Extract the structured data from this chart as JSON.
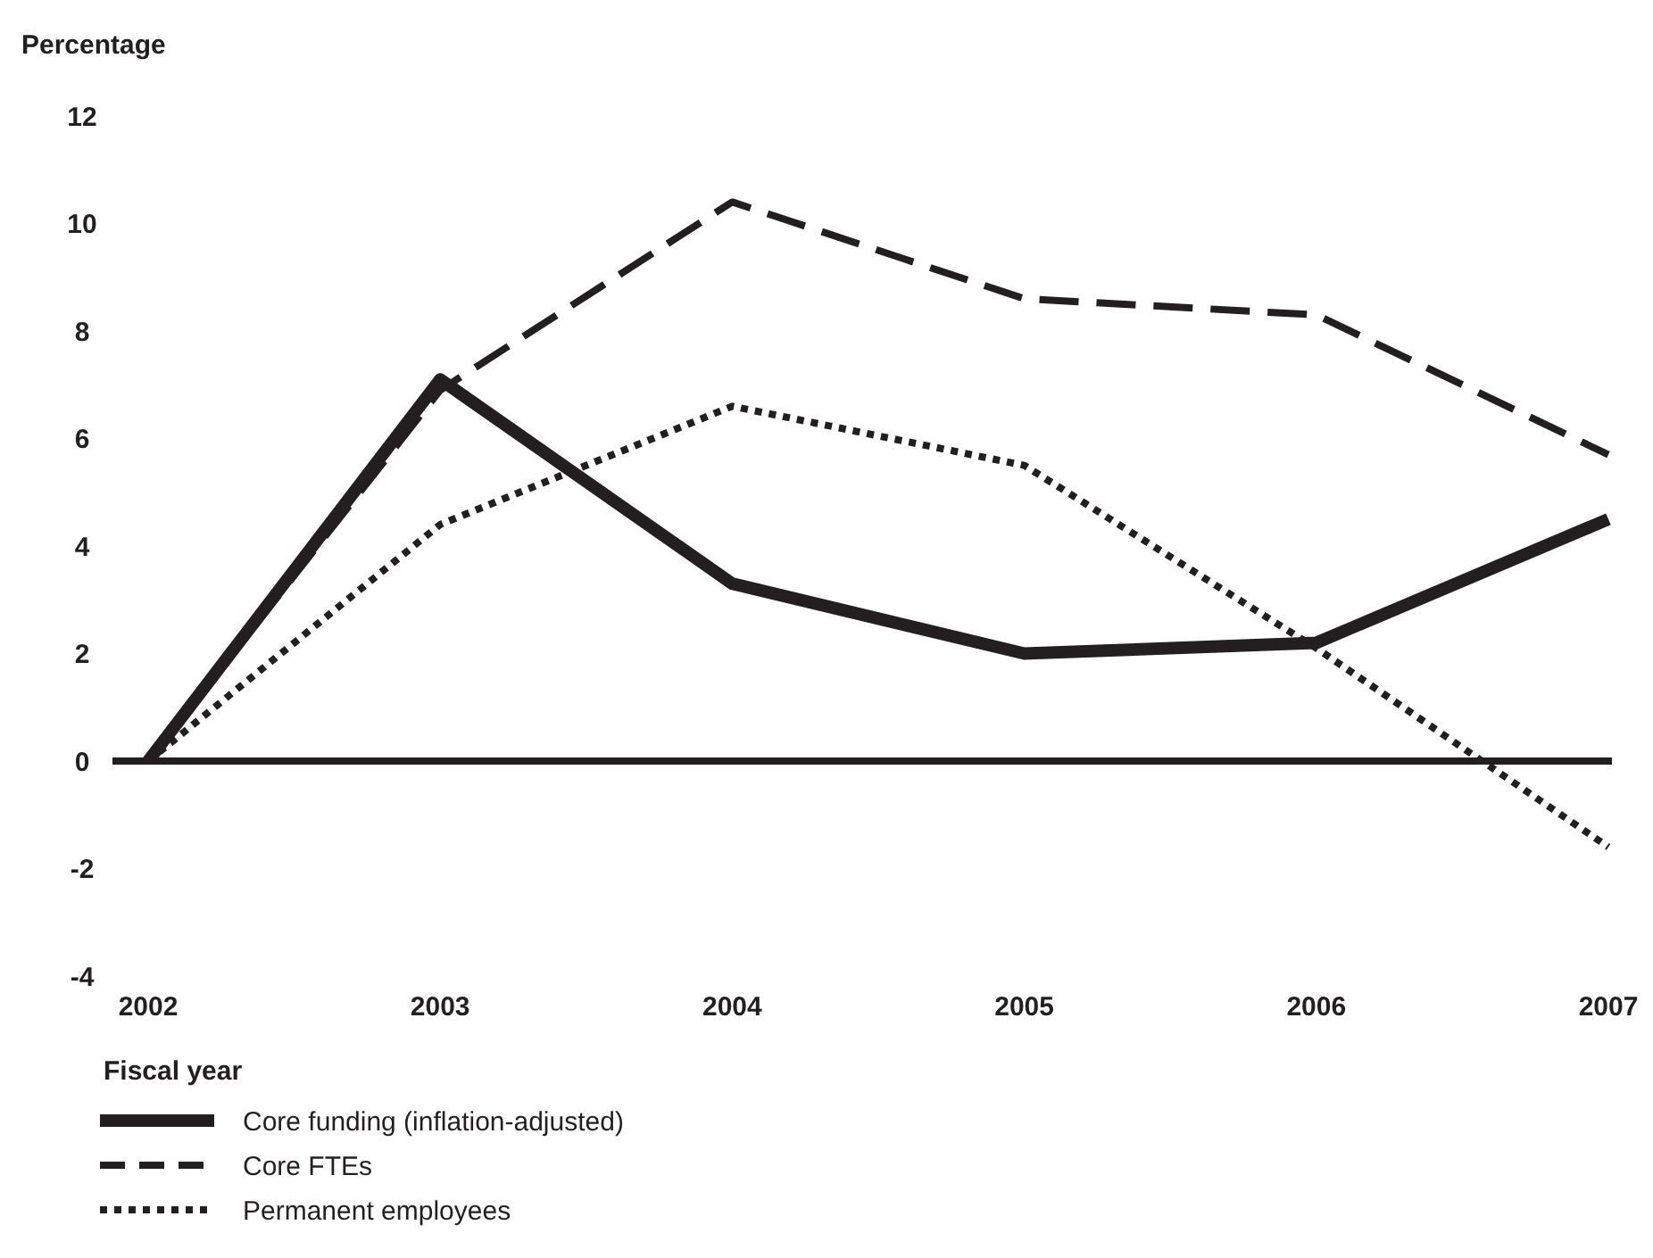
{
  "chart_data": {
    "type": "line",
    "ylabel": "Percentage",
    "xlabel": "Fiscal year",
    "categories": [
      "2002",
      "2003",
      "2004",
      "2005",
      "2006",
      "2007"
    ],
    "ylim": [
      -4,
      12
    ],
    "yticks": [
      -4,
      -2,
      0,
      2,
      4,
      6,
      8,
      10,
      12
    ],
    "grid": false,
    "legend": "bottom left",
    "ref_lines": [
      {
        "axis": "y",
        "value": 0,
        "color": "#231f20"
      }
    ],
    "series": [
      {
        "name": "Core funding (inflation-adjusted)",
        "color": "#231f20",
        "line_style": "solid",
        "values": [
          0,
          7.1,
          3.3,
          2.0,
          2.2,
          4.5
        ]
      },
      {
        "name": "Core FTEs",
        "color": "#231f20",
        "line_style": "dashed",
        "values": [
          0,
          6.9,
          10.4,
          8.6,
          8.3,
          5.7
        ]
      },
      {
        "name": "Permanent employees",
        "color": "#231f20",
        "line_style": "dotted",
        "values": [
          0,
          4.4,
          6.6,
          5.5,
          2.1,
          -1.6
        ]
      }
    ]
  }
}
